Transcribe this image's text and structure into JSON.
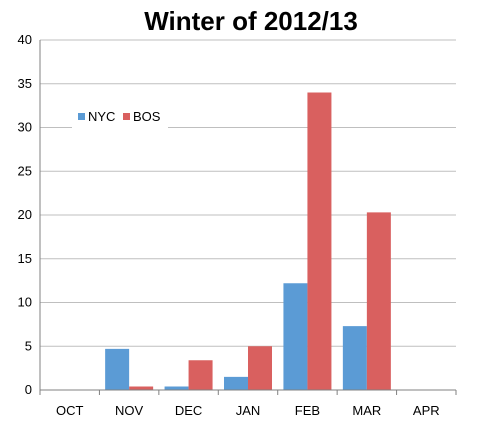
{
  "chart_data": {
    "type": "bar",
    "title": "Winter of 2012/13",
    "xlabel": "",
    "ylabel": "",
    "categories": [
      "OCT",
      "NOV",
      "DEC",
      "JAN",
      "FEB",
      "MAR",
      "APR"
    ],
    "series": [
      {
        "name": "NYC",
        "color": "#5b9bd5",
        "values": [
          0,
          4.7,
          0.4,
          1.5,
          12.2,
          7.3,
          0
        ]
      },
      {
        "name": "BOS",
        "color": "#d9605f",
        "values": [
          0,
          0.4,
          3.4,
          5.0,
          34.0,
          20.3,
          0
        ]
      }
    ],
    "ylim": [
      0,
      40
    ],
    "yticks": [
      "0",
      "5",
      "10",
      "15",
      "20",
      "25",
      "30",
      "35",
      "40"
    ],
    "grid": true,
    "legend_position": "upper-left"
  }
}
